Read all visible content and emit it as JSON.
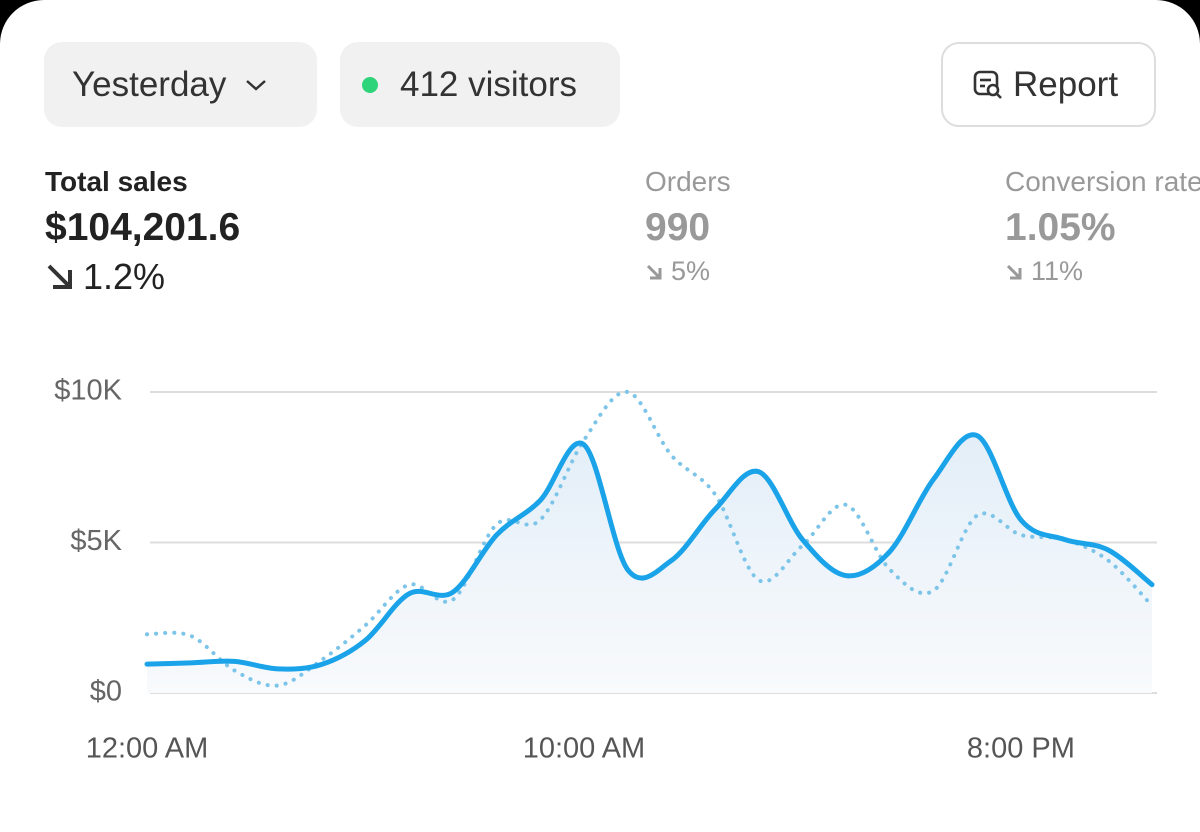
{
  "header": {
    "date_filter": "Yesterday",
    "visitors": "412 visitors",
    "report_button": "Report"
  },
  "metrics": [
    {
      "label": "Total sales",
      "value": "$104,201.6",
      "change": "1.2%"
    },
    {
      "label": "Orders",
      "value": "990",
      "change": "5%"
    },
    {
      "label": "Conversion rate",
      "value": "1.05%",
      "change": "11%"
    }
  ],
  "chart_data": {
    "type": "line",
    "x": [
      0,
      1,
      2,
      3,
      4,
      5,
      6,
      7,
      8,
      9,
      10,
      11,
      12,
      13,
      14,
      15,
      16,
      17,
      18,
      19,
      20,
      21,
      22,
      23
    ],
    "xlim": [
      0,
      23
    ],
    "xticks": [
      {
        "value": 0,
        "label": "12:00 AM"
      },
      {
        "value": 10,
        "label": "10:00 AM"
      },
      {
        "value": 20,
        "label": "8:00 PM"
      }
    ],
    "ylim": [
      0,
      10000
    ],
    "yticks": [
      {
        "value": 0,
        "label": "$0"
      },
      {
        "value": 5000,
        "label": "$5K"
      },
      {
        "value": 10000,
        "label": "$10K"
      }
    ],
    "grid": true,
    "series": [
      {
        "color": "#1aa3e8",
        "style": "solid",
        "area": true,
        "values": [
          960,
          1000,
          1050,
          800,
          950,
          1750,
          3300,
          3350,
          5250,
          6400,
          8250,
          4100,
          4400,
          6100,
          7350,
          5100,
          3900,
          4700,
          7100,
          8550,
          5750,
          5100,
          4750,
          3600
        ]
      },
      {
        "color": "#7cc4e8",
        "style": "dotted",
        "area": false,
        "values": [
          1950,
          1900,
          750,
          250,
          1100,
          2250,
          3600,
          3100,
          5600,
          5750,
          8400,
          10000,
          7900,
          6600,
          3750,
          4900,
          6250,
          4100,
          3400,
          5900,
          5250,
          5100,
          4400,
          2900
        ]
      }
    ]
  }
}
